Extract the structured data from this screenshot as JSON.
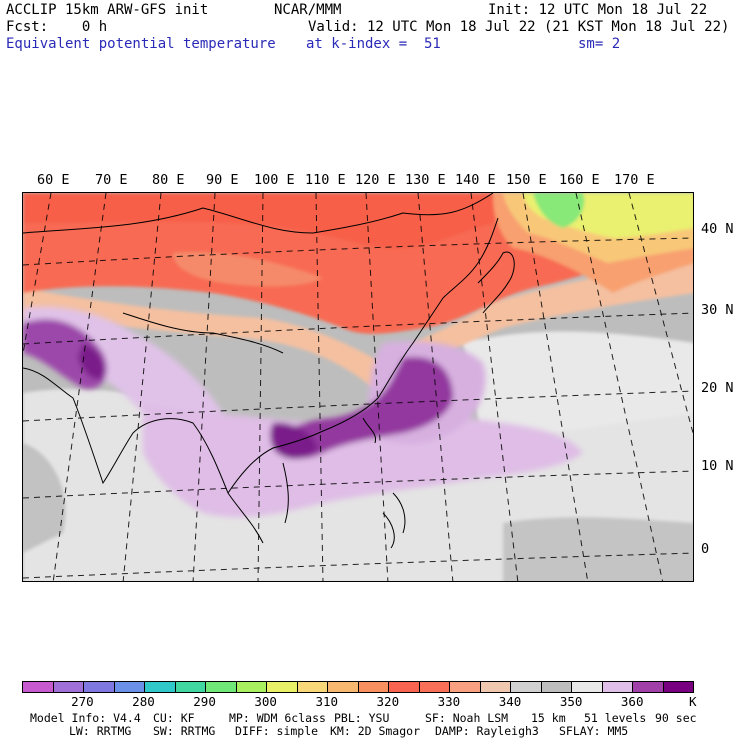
{
  "header": {
    "model_title": "ACCLIP 15km ARW-GFS init",
    "center": "NCAR/MMM",
    "init_time": "Init: 12 UTC Mon 18 Jul 22",
    "forecast": "Fcst:    0 h",
    "valid_time": "Valid: 12 UTC Mon 18 Jul 22 (21 KST Mon 18 Jul 22)",
    "field_name": "Equivalent potential temperature",
    "level": "at k-index =  51",
    "smoothing": "sm= 2"
  },
  "map": {
    "lon_labels": [
      "60 E",
      "70 E",
      "80 E",
      "90 E",
      "100 E",
      "110 E",
      "120 E",
      "130 E",
      "140 E",
      "150 E",
      "160 E",
      "170 E"
    ],
    "lat_labels": [
      "40 N",
      "30 N",
      "20 N",
      "10 N",
      "0"
    ]
  },
  "colorbar": {
    "colors": [
      "#c85ad0",
      "#a070d8",
      "#7e78e0",
      "#6a90e8",
      "#30c8c8",
      "#40d8a0",
      "#70e878",
      "#a8f060",
      "#e8f068",
      "#f8d878",
      "#f8b870",
      "#f89060",
      "#f86450",
      "#f87058",
      "#f8a080",
      "#f0c8b0",
      "#d0d0d0",
      "#bebebe",
      "#e8e8e8",
      "#e0c0e8",
      "#a040a8",
      "#780080"
    ],
    "ticks": [
      "270",
      "280",
      "290",
      "300",
      "310",
      "320",
      "330",
      "340",
      "350",
      "360"
    ],
    "unit": "K"
  },
  "footer": {
    "line1": [
      "Model Info: V4.4",
      "CU: KF",
      "MP: WDM 6class",
      "PBL: YSU",
      "SF: Noah LSM",
      "15 km",
      "51 levels",
      "90 sec"
    ],
    "line2": [
      "LW: RRTMG",
      "SW: RRTMG",
      "DIFF: simple",
      "KM: 2D Smagor",
      "DAMP: Rayleigh3",
      "SFLAY: MM5"
    ]
  }
}
